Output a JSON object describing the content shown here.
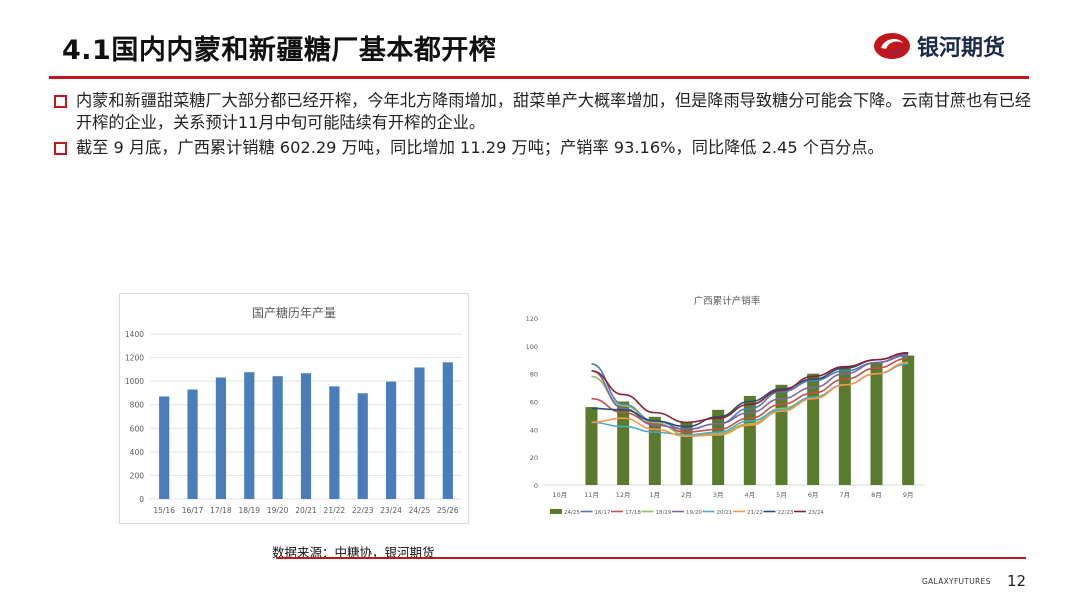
{
  "slide": {
    "title": "4.1国内内蒙和新疆糖厂基本都开榨",
    "logo_text": "银河期货",
    "bullets": [
      "内蒙和新疆甜菜糖厂大部分都已经开榨，今年北方降雨增加，甜菜单产大概率增加，但是降雨导致糖分可能会下降。云南甘蔗也有已经开榨的企业，关系预计11月中旬可能陆续有开榨的企业。",
      "截至 9 月底，广西累计销糖 602.29 万吨，同比增加 11.29 万吨；产销率 93.16%，同比降低 2.45 个百分点。"
    ],
    "source": "数据来源：中糖协，银河期货",
    "footer_brand": "GALAXYFUTURES",
    "page_number": "12"
  },
  "colors": {
    "accent": "#c0161e",
    "bar_blue": "#4a7ebb",
    "bar_green": "#5a7a2e"
  },
  "chart_data": [
    {
      "type": "bar",
      "title": "国产糖历年产量",
      "categories": [
        "15/16",
        "16/17",
        "17/18",
        "18/19",
        "19/20",
        "20/21",
        "21/22",
        "22/23",
        "23/24",
        "24/25",
        "25/26"
      ],
      "values": [
        870,
        929,
        1031,
        1076,
        1042,
        1067,
        956,
        897,
        996,
        1116,
        1160
      ],
      "y_ticks": [
        "0",
        "200",
        "400",
        "600",
        "800",
        "1000",
        "1200",
        "1400"
      ],
      "ylim": [
        0,
        1400
      ],
      "grid": true
    },
    {
      "type": "bar+line",
      "title": "广西累计产销率",
      "categories": [
        "10月",
        "11月",
        "12月",
        "1月",
        "2月",
        "3月",
        "4月",
        "5月",
        "6月",
        "7月",
        "8月",
        "9月"
      ],
      "y_ticks": [
        "0",
        "20",
        "40",
        "60",
        "80",
        "100",
        "120"
      ],
      "ylim": [
        0,
        120
      ],
      "grid": false,
      "legend_position": "bottom",
      "bar_series": {
        "name": "24/25",
        "color": "#5a7a2e",
        "values": [
          null,
          56,
          60,
          49,
          45,
          54,
          64,
          72,
          80,
          85,
          88,
          93
        ]
      },
      "line_series": [
        {
          "name": "16/17",
          "color": "#4a7ebb",
          "values": [
            null,
            87,
            58,
            46,
            40,
            44,
            55,
            67,
            75,
            82,
            88,
            93
          ]
        },
        {
          "name": "17/18",
          "color": "#c0504d",
          "values": [
            null,
            62,
            52,
            44,
            38,
            40,
            48,
            58,
            66,
            76,
            84,
            91
          ]
        },
        {
          "name": "18/19",
          "color": "#9bbb59",
          "values": [
            null,
            78,
            57,
            45,
            36,
            37,
            44,
            55,
            63,
            72,
            80,
            88
          ]
        },
        {
          "name": "19/20",
          "color": "#8064a2",
          "values": [
            null,
            82,
            55,
            43,
            40,
            44,
            52,
            62,
            70,
            80,
            88,
            94
          ]
        },
        {
          "name": "20/21",
          "color": "#4bacc6",
          "values": [
            null,
            45,
            42,
            38,
            36,
            38,
            46,
            54,
            63,
            72,
            80,
            87
          ]
        },
        {
          "name": "21/22",
          "color": "#f79646",
          "values": [
            null,
            45,
            48,
            40,
            35,
            36,
            43,
            53,
            62,
            72,
            80,
            88
          ]
        },
        {
          "name": "22/23",
          "color": "#2c4d75",
          "values": [
            null,
            55,
            54,
            46,
            42,
            49,
            60,
            69,
            76,
            84,
            90,
            95
          ]
        },
        {
          "name": "23/24",
          "color": "#8b2130",
          "values": [
            null,
            82,
            65,
            52,
            45,
            48,
            58,
            68,
            78,
            85,
            90,
            95
          ]
        }
      ]
    }
  ]
}
